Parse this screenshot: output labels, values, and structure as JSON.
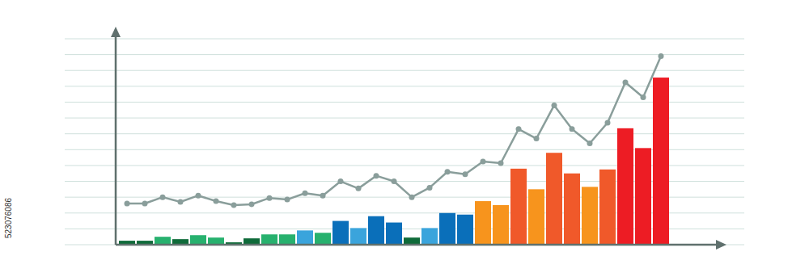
{
  "chart_data": {
    "type": "bar",
    "annotation": "523076086",
    "categories": [
      null,
      null,
      null,
      null,
      null,
      null,
      null,
      null,
      null,
      null,
      null,
      null,
      null,
      null,
      null,
      null,
      null,
      null,
      null,
      null,
      null,
      null,
      null,
      null,
      null,
      null,
      null,
      null,
      null,
      null,
      null
    ],
    "ylim": [
      0,
      13
    ],
    "yticks": [
      0,
      1,
      2,
      3,
      4,
      5,
      6,
      7,
      8,
      9,
      10,
      11,
      12,
      13
    ],
    "grid": true,
    "tick_labels": false,
    "series": [
      {
        "type": "bar",
        "values": [
          0.25,
          0.25,
          0.5,
          0.35,
          0.6,
          0.45,
          0.15,
          0.4,
          0.65,
          0.65,
          0.9,
          0.75,
          1.5,
          1.05,
          1.8,
          1.4,
          0.45,
          1.05,
          2.0,
          1.9,
          2.75,
          2.5,
          4.8,
          3.5,
          5.8,
          4.5,
          3.65,
          4.75,
          7.35,
          6.1,
          10.55
        ],
        "colors": [
          "#0f6b3a",
          "#0f6b3a",
          "#27b16e",
          "#0f6b3a",
          "#27b16e",
          "#27b16e",
          "#0f6b3a",
          "#0f6b3a",
          "#27b16e",
          "#27b16e",
          "#3aa4dc",
          "#27b16e",
          "#0a6fba",
          "#3aa4dc",
          "#0a6fba",
          "#0a6fba",
          "#0f6b3a",
          "#3aa4dc",
          "#0a6fba",
          "#0a6fba",
          "#f7941d",
          "#f7941d",
          "#f0592a",
          "#f7941d",
          "#f0592a",
          "#f0592a",
          "#f7941d",
          "#f0592a",
          "#ed1c24",
          "#ed1c24",
          "#ed1c24"
        ]
      },
      {
        "type": "line",
        "color": "#8a9e9b",
        "marker": "circle",
        "values": [
          2.6,
          2.6,
          3.0,
          2.7,
          3.1,
          2.75,
          2.5,
          2.55,
          2.95,
          2.85,
          3.25,
          3.1,
          4.0,
          3.55,
          4.35,
          4.0,
          3.0,
          3.6,
          4.6,
          4.45,
          5.25,
          5.15,
          7.3,
          6.7,
          8.8,
          7.3,
          6.4,
          7.7,
          10.25,
          9.3,
          11.9
        ]
      }
    ]
  }
}
